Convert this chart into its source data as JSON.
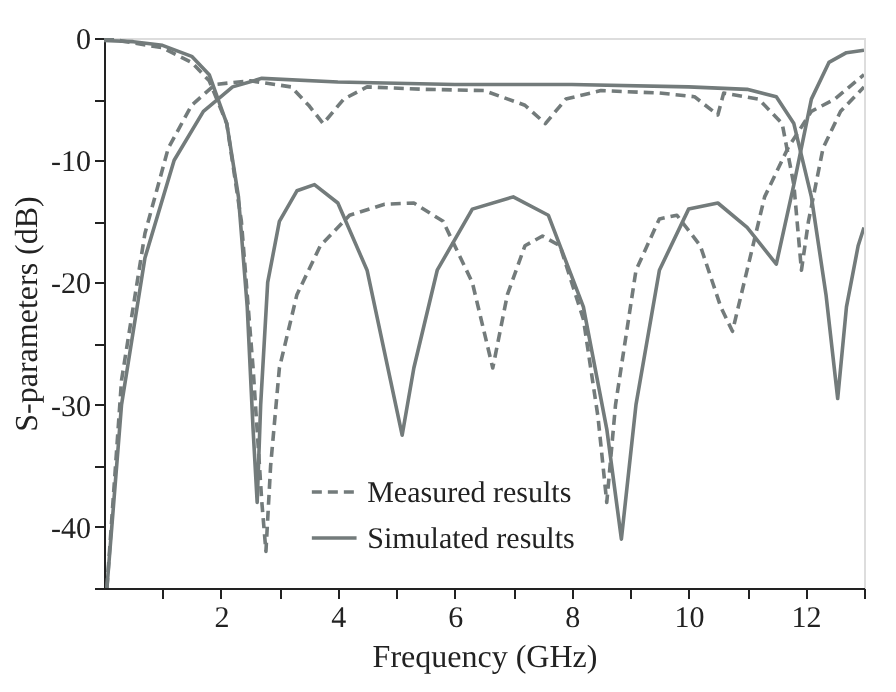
{
  "chart_data": {
    "type": "line",
    "xlabel": "Frequency (GHz)",
    "ylabel": "S-parameters (dB)",
    "xlim": [
      0,
      13
    ],
    "ylim": [
      -45,
      0
    ],
    "xticks": [
      {
        "value": 1,
        "label": null
      },
      2,
      {
        "value": 3,
        "label": null
      },
      4,
      {
        "value": 5,
        "label": null
      },
      6,
      {
        "value": 7,
        "label": null
      },
      8,
      {
        "value": 9,
        "label": null
      },
      10,
      {
        "value": 11,
        "label": null
      },
      12,
      {
        "value": 13,
        "label": null
      }
    ],
    "yticks": [
      0,
      {
        "value": -5,
        "label": null
      },
      -10,
      {
        "value": -15,
        "label": null
      },
      -20,
      {
        "value": -25,
        "label": null
      },
      -30,
      {
        "value": -35,
        "label": null
      },
      -40,
      {
        "value": -45,
        "label": null
      }
    ],
    "legend": "bottom",
    "grid": false,
    "marker": "none",
    "series": [
      {
        "name": "Measured results",
        "color": "#737b7b",
        "line_style": "dashed",
        "x": [
          0,
          0.5,
          1,
          1.5,
          1.8,
          2.1,
          2.35,
          2.55,
          2.7,
          2.77,
          2.85,
          3.0,
          3.3,
          3.7,
          4.2,
          4.8,
          5.3,
          5.8,
          6.3,
          6.65,
          6.9,
          7.2,
          7.5,
          7.8,
          8.2,
          8.45,
          8.6,
          8.75,
          9.1,
          9.5,
          9.8,
          10.2,
          10.55,
          10.75,
          10.95,
          11.3,
          11.7,
          12.1,
          12.5,
          13
        ],
        "values": [
          0,
          -0.4,
          -0.8,
          -2,
          -3.5,
          -7,
          -15,
          -27,
          -38,
          -42,
          -35,
          -27,
          -21,
          -17,
          -14.5,
          -13.6,
          -13.5,
          -15,
          -20,
          -27,
          -21,
          -17,
          -16.2,
          -17,
          -23,
          -31,
          -38,
          -30,
          -19,
          -14.8,
          -14.5,
          -17,
          -22,
          -24,
          -20,
          -13,
          -9,
          -6,
          -5,
          -3
        ]
      },
      {
        "color": "#737b7b",
        "line_style": "dashed",
        "x": [
          0.05,
          0.3,
          0.7,
          1.1,
          1.5,
          1.9,
          2.5,
          3.2,
          3.5,
          3.75,
          4.1,
          4.5,
          5.5,
          6.5,
          7.2,
          7.55,
          7.9,
          8.5,
          9.5,
          10.1,
          10.5,
          10.6,
          11.2,
          11.6,
          11.8,
          11.93,
          12.05,
          12.3,
          12.6,
          13
        ],
        "values": [
          -45,
          -28,
          -16,
          -9,
          -5.5,
          -3.8,
          -3.5,
          -4,
          -5.5,
          -7,
          -5,
          -4,
          -4.2,
          -4.3,
          -5.5,
          -7,
          -5,
          -4.3,
          -4.5,
          -4.8,
          -6.3,
          -4.5,
          -5,
          -7,
          -12,
          -19,
          -15,
          -9,
          -6,
          -4
        ]
      },
      {
        "name": "Simulated results",
        "color": "#737b7b",
        "line_style": "solid",
        "x": [
          0,
          0.5,
          1,
          1.5,
          1.8,
          2.1,
          2.3,
          2.45,
          2.55,
          2.62,
          2.68,
          2.8,
          3.0,
          3.3,
          3.6,
          4.0,
          4.5,
          4.9,
          5.1,
          5.3,
          5.7,
          6.3,
          7.0,
          7.6,
          8.2,
          8.6,
          8.85,
          9.1,
          9.5,
          10.0,
          10.5,
          11.0,
          11.5,
          11.8,
          12.1,
          12.4,
          12.7,
          13
        ],
        "values": [
          -0.2,
          -0.3,
          -0.6,
          -1.5,
          -3,
          -7,
          -13,
          -22,
          -32,
          -38,
          -30,
          -20,
          -15,
          -12.5,
          -12,
          -13.5,
          -19,
          -28,
          -32.5,
          -27,
          -19,
          -14,
          -13,
          -14.5,
          -22,
          -32,
          -41,
          -30,
          -19,
          -14,
          -13.5,
          -15.5,
          -18.5,
          -12,
          -5,
          -2,
          -1.2,
          -1
        ]
      },
      {
        "color": "#737b7b",
        "line_style": "solid",
        "x": [
          0.05,
          0.3,
          0.7,
          1.2,
          1.7,
          2.2,
          2.7,
          4,
          6,
          8,
          10,
          11,
          11.5,
          11.8,
          12.1,
          12.35,
          12.55,
          12.7,
          12.9,
          13
        ],
        "values": [
          -45,
          -30,
          -18,
          -10,
          -6,
          -4,
          -3.3,
          -3.6,
          -3.8,
          -3.8,
          -4,
          -4.2,
          -4.8,
          -7,
          -13,
          -21,
          -29.5,
          -22,
          -17,
          -15.5
        ]
      }
    ]
  }
}
